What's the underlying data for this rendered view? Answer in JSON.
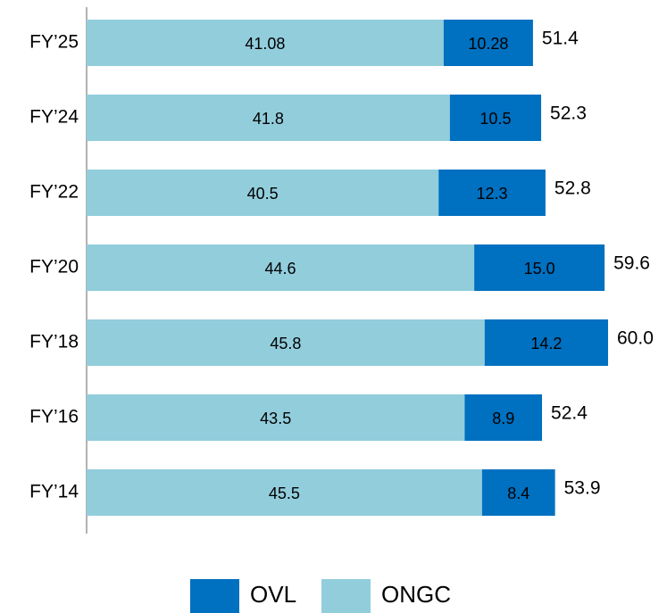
{
  "chart_data": {
    "type": "stacked-bar-horizontal",
    "categories": [
      "FY’25",
      "FY’24",
      "FY’22",
      "FY’20",
      "FY’18",
      "FY’16",
      "FY’14"
    ],
    "series": [
      {
        "name": "ONGC",
        "color": "#92cddc",
        "values": [
          41.08,
          41.8,
          40.5,
          44.6,
          45.8,
          43.5,
          45.5
        ]
      },
      {
        "name": "OVL",
        "color": "#0070c0",
        "values": [
          10.28,
          10.5,
          12.3,
          15.0,
          14.2,
          8.9,
          8.4
        ],
        "value_labels": [
          "10.28",
          "10.5",
          "12.3",
          "15.0",
          "14.2",
          "8.9",
          "8.4"
        ]
      }
    ],
    "totals": {
      "values": [
        51.4,
        52.3,
        52.8,
        59.6,
        60.0,
        52.4,
        53.9
      ],
      "value_labels": [
        "51.4",
        "52.3",
        "52.8",
        "59.6",
        "60.0",
        "52.4",
        "53.9"
      ]
    }
  }
}
